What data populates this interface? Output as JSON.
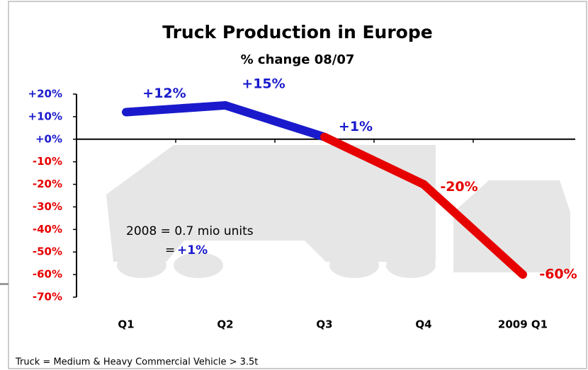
{
  "chart_data": {
    "type": "line",
    "title": "Truck Production in Europe",
    "subtitle": "% change 08/07",
    "categories": [
      "Q1",
      "Q2",
      "Q3",
      "Q4",
      "2009 Q1"
    ],
    "values": [
      12,
      15,
      1,
      -20,
      -60
    ],
    "value_labels": [
      "+12%",
      "+15%",
      "+1%",
      "-20%",
      "-60%"
    ],
    "positive_color": "#1a1acc",
    "negative_color": "#e60000",
    "segment_colors": [
      "#1a1acc",
      "#1a1acc",
      "#e60000",
      "#e60000"
    ],
    "ylim": [
      -70,
      20
    ],
    "yticks": [
      {
        "value": 20,
        "label": "+20%"
      },
      {
        "value": 10,
        "label": "+10%"
      },
      {
        "value": 0,
        "label": "+0%"
      },
      {
        "value": -10,
        "label": "-10%"
      },
      {
        "value": -20,
        "label": "-20%"
      },
      {
        "value": -30,
        "label": "-30%"
      },
      {
        "value": -40,
        "label": "-40%"
      },
      {
        "value": -50,
        "label": "-50%"
      },
      {
        "value": -60,
        "label": "-60%"
      },
      {
        "value": -70,
        "label": "-70%"
      }
    ],
    "annotation": {
      "text": "2008 = 0.7 mio units",
      "equals": "=",
      "value": "+1%"
    },
    "footnote": "Truck = Medium & Heavy  Commercial Vehicle > 3.5t"
  }
}
